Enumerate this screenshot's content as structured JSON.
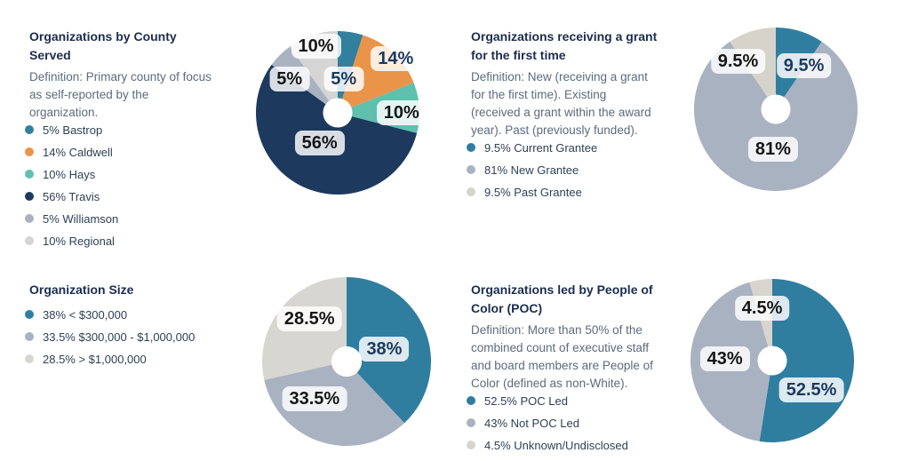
{
  "page": {
    "background": "#ffffff"
  },
  "colors": {
    "title_text": "#1b2d4f",
    "definition_text": "#5d6b7d",
    "legend_item_text": "#2e4156",
    "chip_background": "rgba(255,255,255,0.83)",
    "chip_text_navy": "#1d3a5e",
    "chip_text_black": "#161616",
    "teal": "#337f9e",
    "orange": "#ea9449",
    "turquoise": "#5fc0ae",
    "navy": "#1d3a5e",
    "gray_blue": "#a9b2c1",
    "light_gray": "#d5d5d2"
  },
  "chart_data": [
    {
      "type": "pie",
      "donut": true,
      "title": "Organizations by County\nServed",
      "definition": "Definition: Primary county of focus\nas self-reported by the\norganization.",
      "legend_position": "left",
      "categories": [
        "Bastrop",
        "Caldwell",
        "Hays",
        "Travis",
        "Williamson",
        "Regional"
      ],
      "values": [
        5,
        14,
        10,
        56,
        5,
        10
      ],
      "slices": [
        {
          "legend": "5% Bastrop",
          "label": "5%",
          "value": 5,
          "color": "#337f9e",
          "label_color": "#1d3a5e",
          "label_angle": 10,
          "label_radius": 0.42
        },
        {
          "legend": "14% Caldwell",
          "label": "14%",
          "value": 14,
          "color": "#ea9449",
          "label_color": "#1d3a5e",
          "label_angle": 47,
          "label_radius": 0.97
        },
        {
          "legend": "10% Hays",
          "label": "10%",
          "value": 10,
          "color": "#5fc0ae",
          "label_color": "#161616",
          "label_angle": 90,
          "label_radius": 0.78
        },
        {
          "legend": "56% Travis",
          "label": "56%",
          "value": 56,
          "color": "#1d3a5e",
          "label_color": "#161616",
          "label_angle": 211,
          "label_radius": 0.43
        },
        {
          "legend": "5% Williamson",
          "label": "5%",
          "value": 5,
          "color": "#a9b2c1",
          "label_color": "#161616",
          "label_angle": 305,
          "label_radius": 0.72
        },
        {
          "legend": "10% Regional",
          "label": "10%",
          "value": 10,
          "color": "#d4d5d4",
          "label_color": "#161616",
          "label_angle": 342,
          "label_radius": 0.86
        }
      ]
    },
    {
      "type": "pie",
      "donut": true,
      "title": "Organizations receiving a grant\nfor the first time",
      "definition": "Definition: New (receiving a grant\nfor the first time). Existing\n(received a grant within the award\nyear). Past (previously funded).",
      "legend_position": "left",
      "categories": [
        "Current Grantee",
        "New Grantee",
        "Past Grantee"
      ],
      "values": [
        9.5,
        81,
        9.5
      ],
      "slices": [
        {
          "legend": "9.5% Current Grantee",
          "label": "9.5%",
          "value": 9.5,
          "color": "#2f7ea0",
          "label_color": "#1d3a5e",
          "label_angle": 33,
          "label_radius": 0.63
        },
        {
          "legend": "81% New Grantee",
          "label": "81%",
          "value": 81,
          "color": "#a9b2c1",
          "label_color": "#161616",
          "label_angle": 184,
          "label_radius": 0.49
        },
        {
          "legend": "9.5% Past Grantee",
          "label": "9.5%",
          "value": 9.5,
          "color": "#d6d3ca",
          "label_color": "#161616",
          "label_angle": 322,
          "label_radius": 0.75
        }
      ]
    },
    {
      "type": "pie",
      "donut": true,
      "title": "Organization Size",
      "definition": "",
      "legend_position": "left",
      "categories": [
        "< $300,000",
        "$300,000 - $1,000,000",
        "> $1,000,000"
      ],
      "values": [
        38,
        33.5,
        28.5
      ],
      "slices": [
        {
          "legend": "38% < $300,000",
          "label": "38%",
          "value": 38,
          "color": "#307e9f",
          "label_color": "#1d3a5e",
          "label_angle": 72,
          "label_radius": 0.47
        },
        {
          "legend": "33.5% $300,000 - $1,000,000",
          "label": "33.5%",
          "value": 33.5,
          "color": "#a9b2c1",
          "label_color": "#161616",
          "label_angle": 221,
          "label_radius": 0.58
        },
        {
          "legend": "28.5% > $1,000,000",
          "label": "28.5%",
          "value": 28.5,
          "color": "#d8d6d0",
          "label_color": "#161616",
          "label_angle": 319,
          "label_radius": 0.67
        }
      ]
    },
    {
      "type": "pie",
      "donut": true,
      "title": "Organizations led by People of\nColor (POC)",
      "definition": "Definition: More than 50% of the\ncombined count of executive staff\nand board members are People of\nColor (defined as non-White).",
      "legend_position": "left",
      "categories": [
        "POC Led",
        "Not POC Led",
        "Unknown/Undisclosed"
      ],
      "values": [
        52.5,
        43,
        4.5
      ],
      "slices": [
        {
          "legend": "52.5% POC Led",
          "label": "52.5%",
          "value": 52.5,
          "color": "#2f7ea0",
          "label_color": "#1d3a5e",
          "label_angle": 127,
          "label_radius": 0.6
        },
        {
          "legend": "43% Not POC Led",
          "label": "43%",
          "value": 43,
          "color": "#a9b2c1",
          "label_color": "#161616",
          "label_angle": 272,
          "label_radius": 0.58
        },
        {
          "legend": "4.5% Unknown/Undisclosed",
          "label": "4.5%",
          "value": 4.5,
          "color": "#d7d5cd",
          "label_color": "#161616",
          "label_angle": 349,
          "label_radius": 0.65
        }
      ]
    }
  ]
}
